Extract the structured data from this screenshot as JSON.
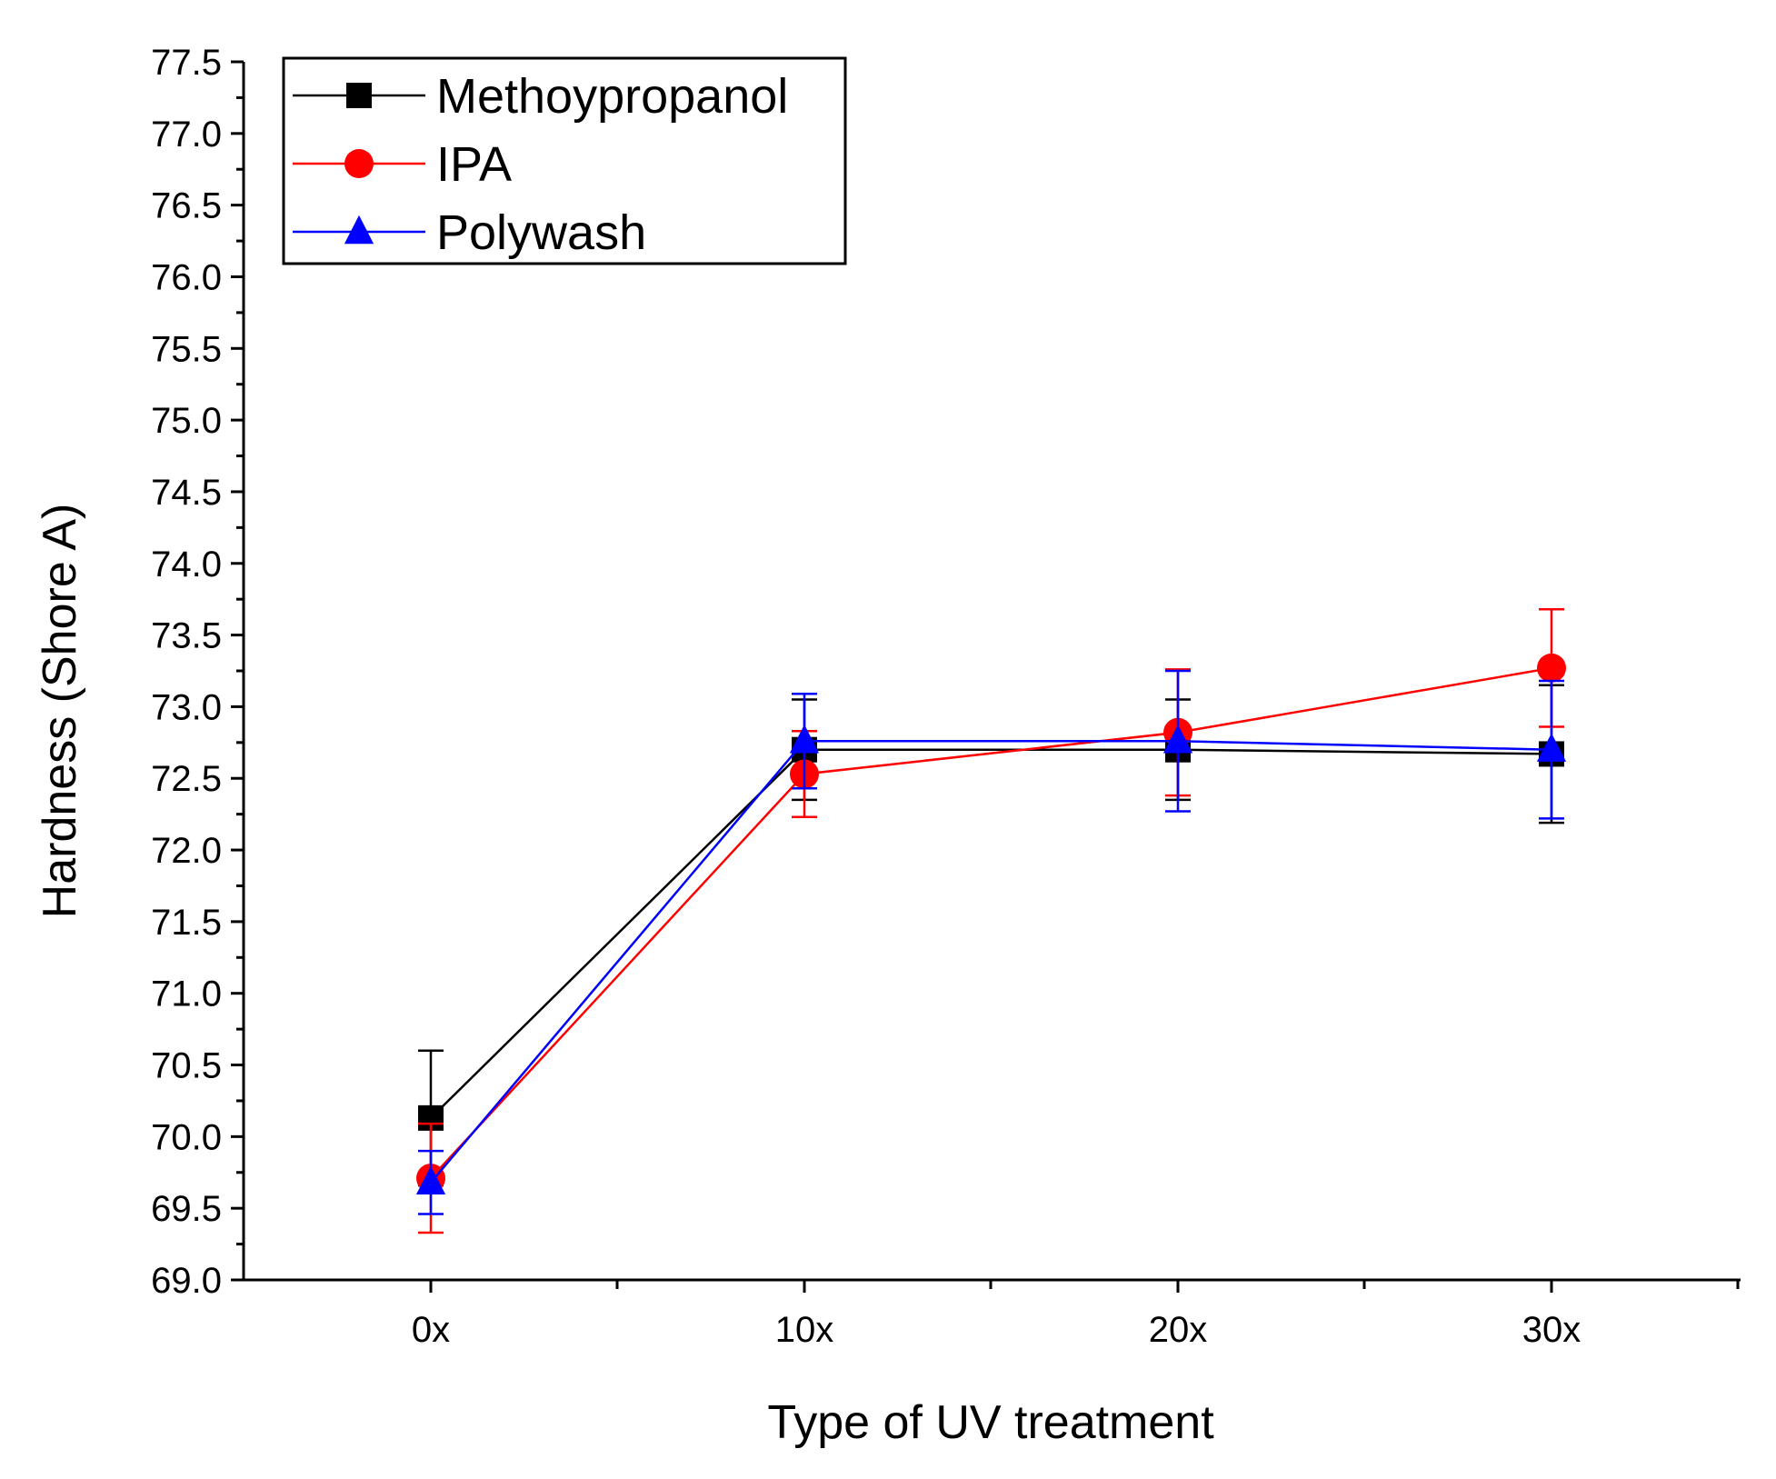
{
  "chart_data": {
    "type": "line",
    "title": "",
    "xlabel": "Type of UV treatment",
    "ylabel": "Hardness (Shore A)",
    "categories": [
      "0x",
      "10x",
      "20x",
      "30x"
    ],
    "ylim": [
      69.0,
      77.5
    ],
    "ytick_step": 0.5,
    "yticks": [
      "69.0",
      "69.5",
      "70.0",
      "70.5",
      "71.0",
      "71.5",
      "72.0",
      "72.5",
      "73.0",
      "73.5",
      "74.0",
      "74.5",
      "75.0",
      "75.5",
      "76.0",
      "76.5",
      "77.0",
      "77.5"
    ],
    "legend_position": "top-left",
    "series": [
      {
        "name": "Methoypropanol",
        "color": "#000000",
        "marker": "square",
        "values": [
          70.13,
          72.7,
          72.7,
          72.67
        ],
        "errors": [
          0.47,
          0.35,
          0.35,
          0.48
        ]
      },
      {
        "name": "IPA",
        "color": "#ff0000",
        "marker": "circle",
        "values": [
          69.71,
          72.53,
          72.82,
          73.27
        ],
        "errors": [
          0.38,
          0.3,
          0.44,
          0.41
        ]
      },
      {
        "name": "Polywash",
        "color": "#0000ff",
        "marker": "triangle",
        "values": [
          69.68,
          72.76,
          72.76,
          72.7
        ],
        "errors": [
          0.22,
          0.33,
          0.49,
          0.48
        ]
      }
    ]
  }
}
